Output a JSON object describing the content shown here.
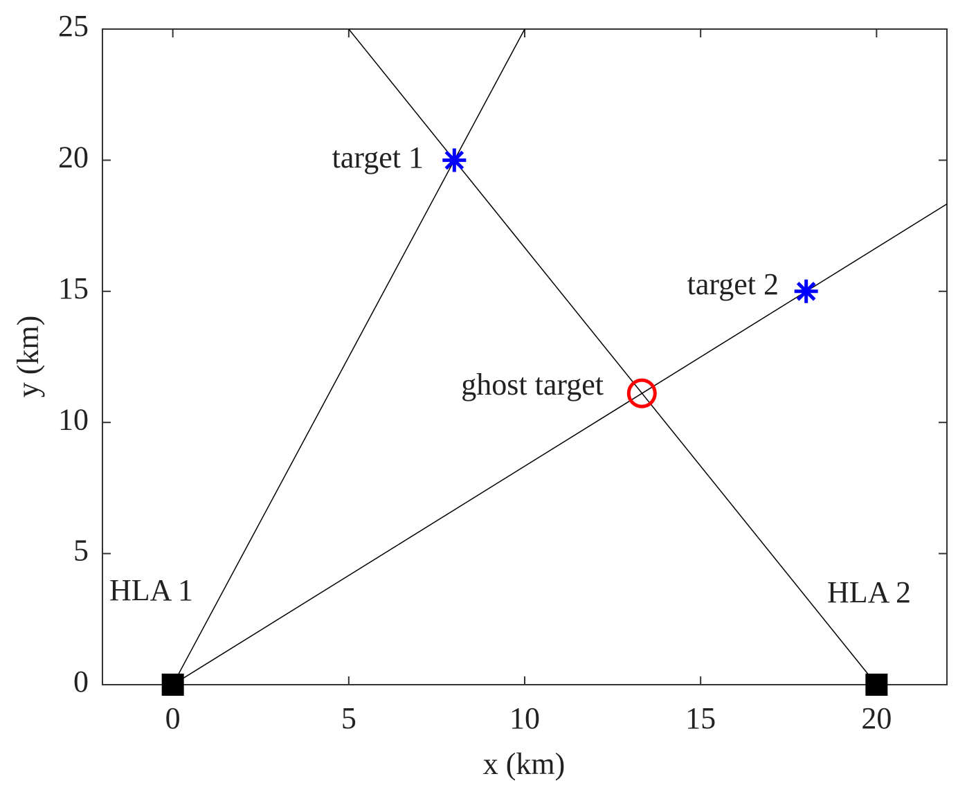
{
  "chart_data": {
    "type": "line",
    "xlabel": "x (km)",
    "ylabel": "y (km)",
    "xlim": [
      -2,
      22
    ],
    "ylim": [
      0,
      25
    ],
    "xticks": [
      0,
      5,
      10,
      15,
      20
    ],
    "yticks": [
      0,
      5,
      10,
      15,
      20,
      25
    ],
    "grid": false,
    "series": [
      {
        "color": "#000000",
        "x": [
          0,
          10
        ],
        "values": [
          0,
          25
        ]
      },
      {
        "color": "#000000",
        "x": [
          0,
          22
        ],
        "values": [
          0,
          18.33
        ]
      },
      {
        "color": "#000000",
        "x": [
          20,
          5
        ],
        "values": [
          0,
          25
        ]
      },
      {
        "color": "#000000",
        "marker": "square",
        "x": [
          0,
          20
        ],
        "values": [
          0,
          0
        ]
      },
      {
        "color": "#0000ff",
        "marker": "asterisk",
        "x": [
          8,
          18
        ],
        "values": [
          20,
          15
        ]
      },
      {
        "color": "#ff0000",
        "marker": "circle",
        "x": [
          13.33
        ],
        "values": [
          11.11
        ]
      }
    ],
    "annotations": [
      "target 1",
      "target 2",
      "ghost target",
      "HLA 1",
      "HLA 2"
    ]
  }
}
